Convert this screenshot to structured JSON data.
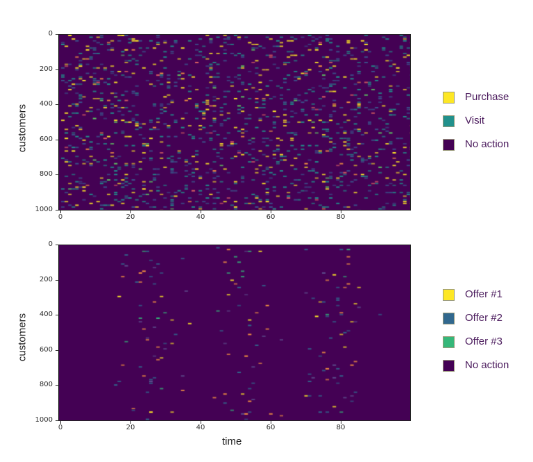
{
  "chart_data": [
    {
      "type": "heatmap",
      "title": "",
      "xlabel": "",
      "ylabel": "customers",
      "xlim": [
        0,
        100
      ],
      "ylim": [
        1000,
        0
      ],
      "x_ticks": [
        0,
        20,
        40,
        60,
        80
      ],
      "y_ticks": [
        0,
        200,
        400,
        600,
        800,
        1000
      ],
      "n_customers": 1000,
      "n_timesteps": 100,
      "grid": false,
      "legend_position": "right",
      "categories": [
        {
          "label": "Purchase",
          "color": "#fde725",
          "approx_rate": 0.035
        },
        {
          "label": "Visit",
          "color": "#21918c",
          "approx_rate": 0.09
        },
        {
          "label": "No action",
          "color": "#440154"
        }
      ],
      "pattern": "uniform random events across all time steps and customers",
      "seed": 7
    },
    {
      "type": "heatmap",
      "title": "",
      "xlabel": "time",
      "ylabel": "customers",
      "xlim": [
        0,
        100
      ],
      "ylim": [
        1000,
        0
      ],
      "x_ticks": [
        0,
        20,
        40,
        60,
        80
      ],
      "y_ticks": [
        0,
        200,
        400,
        600,
        800,
        1000
      ],
      "n_customers": 1000,
      "n_timesteps": 100,
      "grid": false,
      "legend_position": "right",
      "categories": [
        {
          "label": "Offer #1",
          "color": "#fde725"
        },
        {
          "label": "Offer #2",
          "color": "#31688e"
        },
        {
          "label": "Offer #3",
          "color": "#35b779"
        },
        {
          "label": "No action",
          "color": "#440154"
        }
      ],
      "pattern": "offers concentrated in three time bands",
      "bands": [
        {
          "center": 25,
          "sigma": 5
        },
        {
          "center": 50,
          "sigma": 5
        },
        {
          "center": 77,
          "sigma": 5
        }
      ],
      "offer_rate_peak": 0.045,
      "seed": 13
    }
  ],
  "top_legend": [
    {
      "label": "Purchase",
      "color": "#fde725"
    },
    {
      "label": "Visit",
      "color": "#21918c"
    },
    {
      "label": "No action",
      "color": "#440154"
    }
  ],
  "bottom_legend": [
    {
      "label": "Offer #1",
      "color": "#fde725"
    },
    {
      "label": "Offer #2",
      "color": "#31688e"
    },
    {
      "label": "Offer #3",
      "color": "#35b779"
    },
    {
      "label": "No action",
      "color": "#440154"
    }
  ],
  "axis_labels": {
    "top_ylabel": "customers",
    "bottom_ylabel": "customers",
    "bottom_xlabel": "time"
  },
  "ticks": {
    "x": [
      "0",
      "20",
      "40",
      "60",
      "80"
    ],
    "y": [
      "0",
      "200",
      "400",
      "600",
      "800",
      "1000"
    ]
  }
}
